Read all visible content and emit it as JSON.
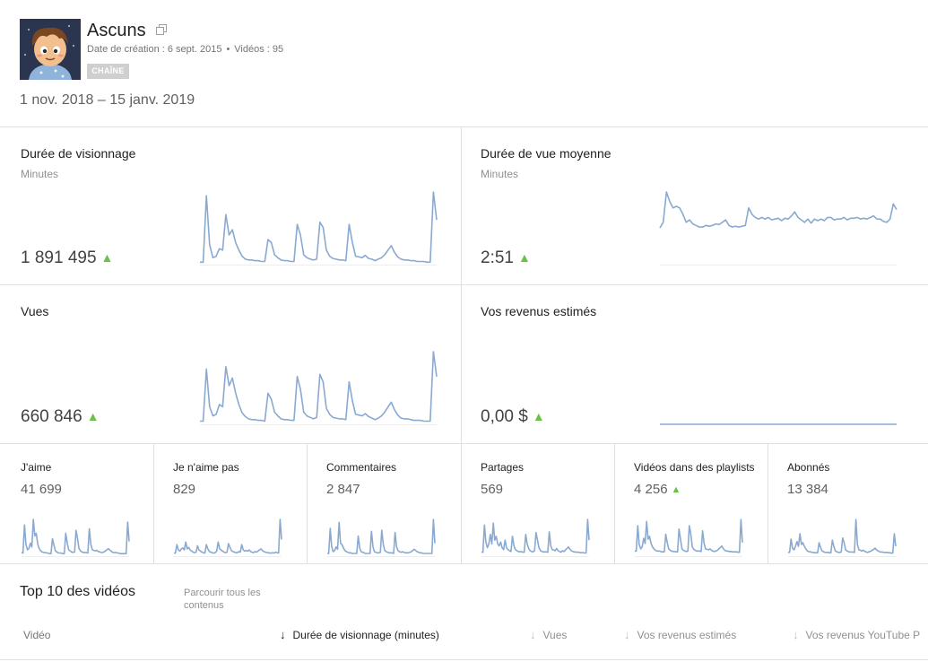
{
  "channel": {
    "name": "Ascuns",
    "created_label": "Date de création : 6 sept. 2015",
    "videos_label": "Vidéos : 95",
    "separator": "•",
    "badge": "CHAÎNE"
  },
  "date_range": "1 nov. 2018 – 15 janv. 2019",
  "colors": {
    "accent_line": "#8aa9d0",
    "up_arrow": "#6cc04a",
    "divider": "#e0e0e0"
  },
  "metrics": {
    "watch_time": {
      "title": "Durée de visionnage",
      "unit": "Minutes",
      "value": "1 891 495",
      "trend": "▲",
      "series": [
        2,
        2,
        90,
        25,
        8,
        10,
        20,
        18,
        65,
        38,
        45,
        28,
        18,
        10,
        6,
        5,
        5,
        4,
        4,
        3,
        3,
        32,
        28,
        12,
        8,
        5,
        4,
        4,
        3,
        3,
        52,
        38,
        12,
        8,
        6,
        5,
        6,
        55,
        48,
        18,
        10,
        7,
        6,
        5,
        5,
        4,
        52,
        28,
        10,
        9,
        8,
        11,
        7,
        6,
        4,
        6,
        8,
        12,
        18,
        24,
        15,
        9,
        6,
        5,
        5,
        4,
        4,
        3,
        3,
        3,
        2,
        2,
        95,
        58
      ]
    },
    "avg_view": {
      "title": "Durée de vue moyenne",
      "unit": "Minutes",
      "value": "2:51",
      "trend": "▲",
      "series": [
        45,
        52,
        90,
        78,
        70,
        72,
        70,
        62,
        52,
        55,
        50,
        48,
        46,
        46,
        48,
        47,
        48,
        50,
        49,
        52,
        55,
        48,
        46,
        47,
        46,
        47,
        48,
        70,
        62,
        58,
        56,
        58,
        56,
        58,
        55,
        56,
        57,
        54,
        57,
        56,
        60,
        65,
        58,
        55,
        52,
        56,
        51,
        56,
        54,
        56,
        54,
        58,
        58,
        55,
        56,
        56,
        58,
        55,
        57,
        57,
        58,
        56,
        57,
        56,
        58,
        60,
        56,
        56,
        53,
        52,
        56,
        75,
        68
      ]
    },
    "views": {
      "title": "Vues",
      "value": "660 846",
      "trend": "▲",
      "series": [
        3,
        3,
        72,
        22,
        10,
        12,
        25,
        22,
        75,
        50,
        60,
        40,
        25,
        14,
        9,
        6,
        5,
        5,
        4,
        4,
        3,
        40,
        32,
        15,
        10,
        6,
        5,
        5,
        4,
        4,
        62,
        45,
        15,
        10,
        8,
        6,
        8,
        65,
        55,
        20,
        12,
        8,
        7,
        6,
        6,
        5,
        55,
        30,
        12,
        11,
        10,
        13,
        9,
        7,
        5,
        7,
        10,
        15,
        22,
        28,
        18,
        11,
        7,
        6,
        6,
        5,
        4,
        4,
        4,
        3,
        3,
        3,
        95,
        62
      ]
    },
    "revenue": {
      "title": "Vos revenus estimés",
      "value": "0,00 $",
      "trend": "▲",
      "series": [
        0,
        0,
        0,
        0,
        0,
        0,
        0,
        0,
        0,
        0,
        0,
        0,
        0,
        0,
        0,
        0,
        0,
        0,
        0,
        0,
        0,
        0,
        0,
        0,
        0,
        0,
        0,
        0,
        0,
        0,
        0,
        0,
        0,
        0,
        0,
        0,
        0,
        0,
        0,
        0,
        0,
        0,
        0,
        0,
        0,
        0,
        0,
        0,
        0,
        0,
        0,
        0,
        0,
        0,
        0,
        0,
        0,
        0,
        0,
        0,
        0,
        0,
        0,
        0,
        0,
        0,
        0,
        0,
        0,
        0,
        0,
        0,
        0,
        0
      ]
    }
  },
  "small_metrics": [
    {
      "title": "J'aime",
      "value": "41 699",
      "trend": "",
      "series": [
        5,
        4,
        55,
        20,
        10,
        12,
        22,
        15,
        65,
        35,
        40,
        20,
        12,
        8,
        6,
        5,
        5,
        4,
        4,
        3,
        3,
        30,
        18,
        8,
        6,
        4,
        4,
        4,
        3,
        3,
        40,
        22,
        10,
        8,
        6,
        5,
        6,
        45,
        30,
        12,
        8,
        6,
        5,
        5,
        5,
        4,
        48,
        20,
        10,
        9,
        8,
        9,
        7,
        6,
        5,
        5,
        6,
        8,
        10,
        12,
        9,
        7,
        5,
        5,
        5,
        4,
        4,
        3,
        3,
        3,
        3,
        3,
        60,
        25
      ]
    },
    {
      "title": "Je n'aime pas",
      "value": "829",
      "trend": "",
      "series": [
        4,
        4,
        20,
        10,
        8,
        12,
        14,
        10,
        25,
        12,
        15,
        10,
        8,
        6,
        5,
        6,
        18,
        10,
        8,
        6,
        5,
        4,
        20,
        12,
        7,
        6,
        5,
        4,
        5,
        8,
        25,
        12,
        10,
        8,
        6,
        5,
        6,
        22,
        15,
        9,
        7,
        6,
        5,
        5,
        7,
        6,
        20,
        10,
        8,
        9,
        8,
        10,
        7,
        6,
        5,
        7,
        6,
        8,
        10,
        12,
        9,
        7,
        6,
        5,
        5,
        4,
        4,
        5,
        4,
        6,
        5,
        4,
        68,
        30
      ]
    },
    {
      "title": "Commentaires",
      "value": "2 847",
      "trend": "",
      "series": [
        3,
        3,
        45,
        15,
        6,
        8,
        14,
        10,
        55,
        20,
        18,
        12,
        8,
        6,
        5,
        4,
        4,
        3,
        3,
        3,
        3,
        32,
        12,
        6,
        5,
        4,
        3,
        3,
        3,
        3,
        40,
        14,
        6,
        5,
        4,
        4,
        5,
        42,
        18,
        8,
        6,
        5,
        4,
        4,
        4,
        3,
        38,
        14,
        8,
        6,
        5,
        6,
        5,
        4,
        4,
        4,
        5,
        6,
        8,
        10,
        8,
        6,
        5,
        4,
        4,
        3,
        3,
        3,
        3,
        3,
        3,
        3,
        60,
        20
      ]
    },
    {
      "title": "Partages",
      "value": "569",
      "trend": "",
      "series": [
        8,
        8,
        80,
        35,
        20,
        30,
        55,
        30,
        85,
        40,
        50,
        30,
        25,
        35,
        20,
        15,
        40,
        20,
        15,
        12,
        10,
        50,
        25,
        15,
        12,
        10,
        9,
        10,
        8,
        8,
        55,
        30,
        18,
        12,
        10,
        9,
        12,
        60,
        40,
        20,
        12,
        10,
        9,
        9,
        9,
        8,
        62,
        25,
        15,
        14,
        12,
        18,
        12,
        10,
        8,
        12,
        10,
        14,
        18,
        22,
        16,
        12,
        10,
        9,
        8,
        8,
        8,
        7,
        7,
        7,
        6,
        6,
        95,
        40
      ]
    },
    {
      "title": "Vidéos dans des playlists",
      "value": "4 256",
      "trend": "▲",
      "series": [
        10,
        10,
        70,
        25,
        15,
        20,
        40,
        28,
        80,
        38,
        45,
        28,
        20,
        15,
        12,
        10,
        10,
        10,
        8,
        8,
        8,
        50,
        30,
        15,
        12,
        10,
        9,
        9,
        8,
        8,
        62,
        38,
        15,
        12,
        10,
        9,
        10,
        70,
        50,
        20,
        14,
        12,
        10,
        10,
        10,
        9,
        58,
        28,
        15,
        14,
        13,
        15,
        12,
        10,
        9,
        10,
        12,
        15,
        18,
        22,
        16,
        12,
        10,
        10,
        9,
        9,
        8,
        8,
        8,
        8,
        7,
        7,
        85,
        30
      ]
    },
    {
      "title": "Abonnés",
      "value": "13 384",
      "trend": "",
      "series": [
        8,
        8,
        45,
        20,
        15,
        25,
        38,
        25,
        60,
        30,
        35,
        25,
        18,
        12,
        10,
        10,
        8,
        8,
        7,
        7,
        7,
        35,
        22,
        12,
        10,
        8,
        8,
        8,
        7,
        7,
        42,
        25,
        12,
        10,
        8,
        8,
        9,
        48,
        35,
        15,
        12,
        10,
        9,
        9,
        9,
        8,
        100,
        30,
        15,
        14,
        12,
        14,
        11,
        9,
        8,
        10,
        11,
        14,
        16,
        20,
        15,
        12,
        10,
        9,
        9,
        8,
        8,
        8,
        7,
        7,
        6,
        6,
        60,
        25
      ]
    }
  ],
  "top10": {
    "title": "Top 10 des vidéos",
    "browse": "Parcourir tous les contenus",
    "columns": {
      "video": "Vidéo",
      "watch_time": "Durée de visionnage (minutes)",
      "views": "Vues",
      "revenue": "Vos revenus estimés",
      "yt_revenue": "Vos revenus YouTube P"
    }
  }
}
